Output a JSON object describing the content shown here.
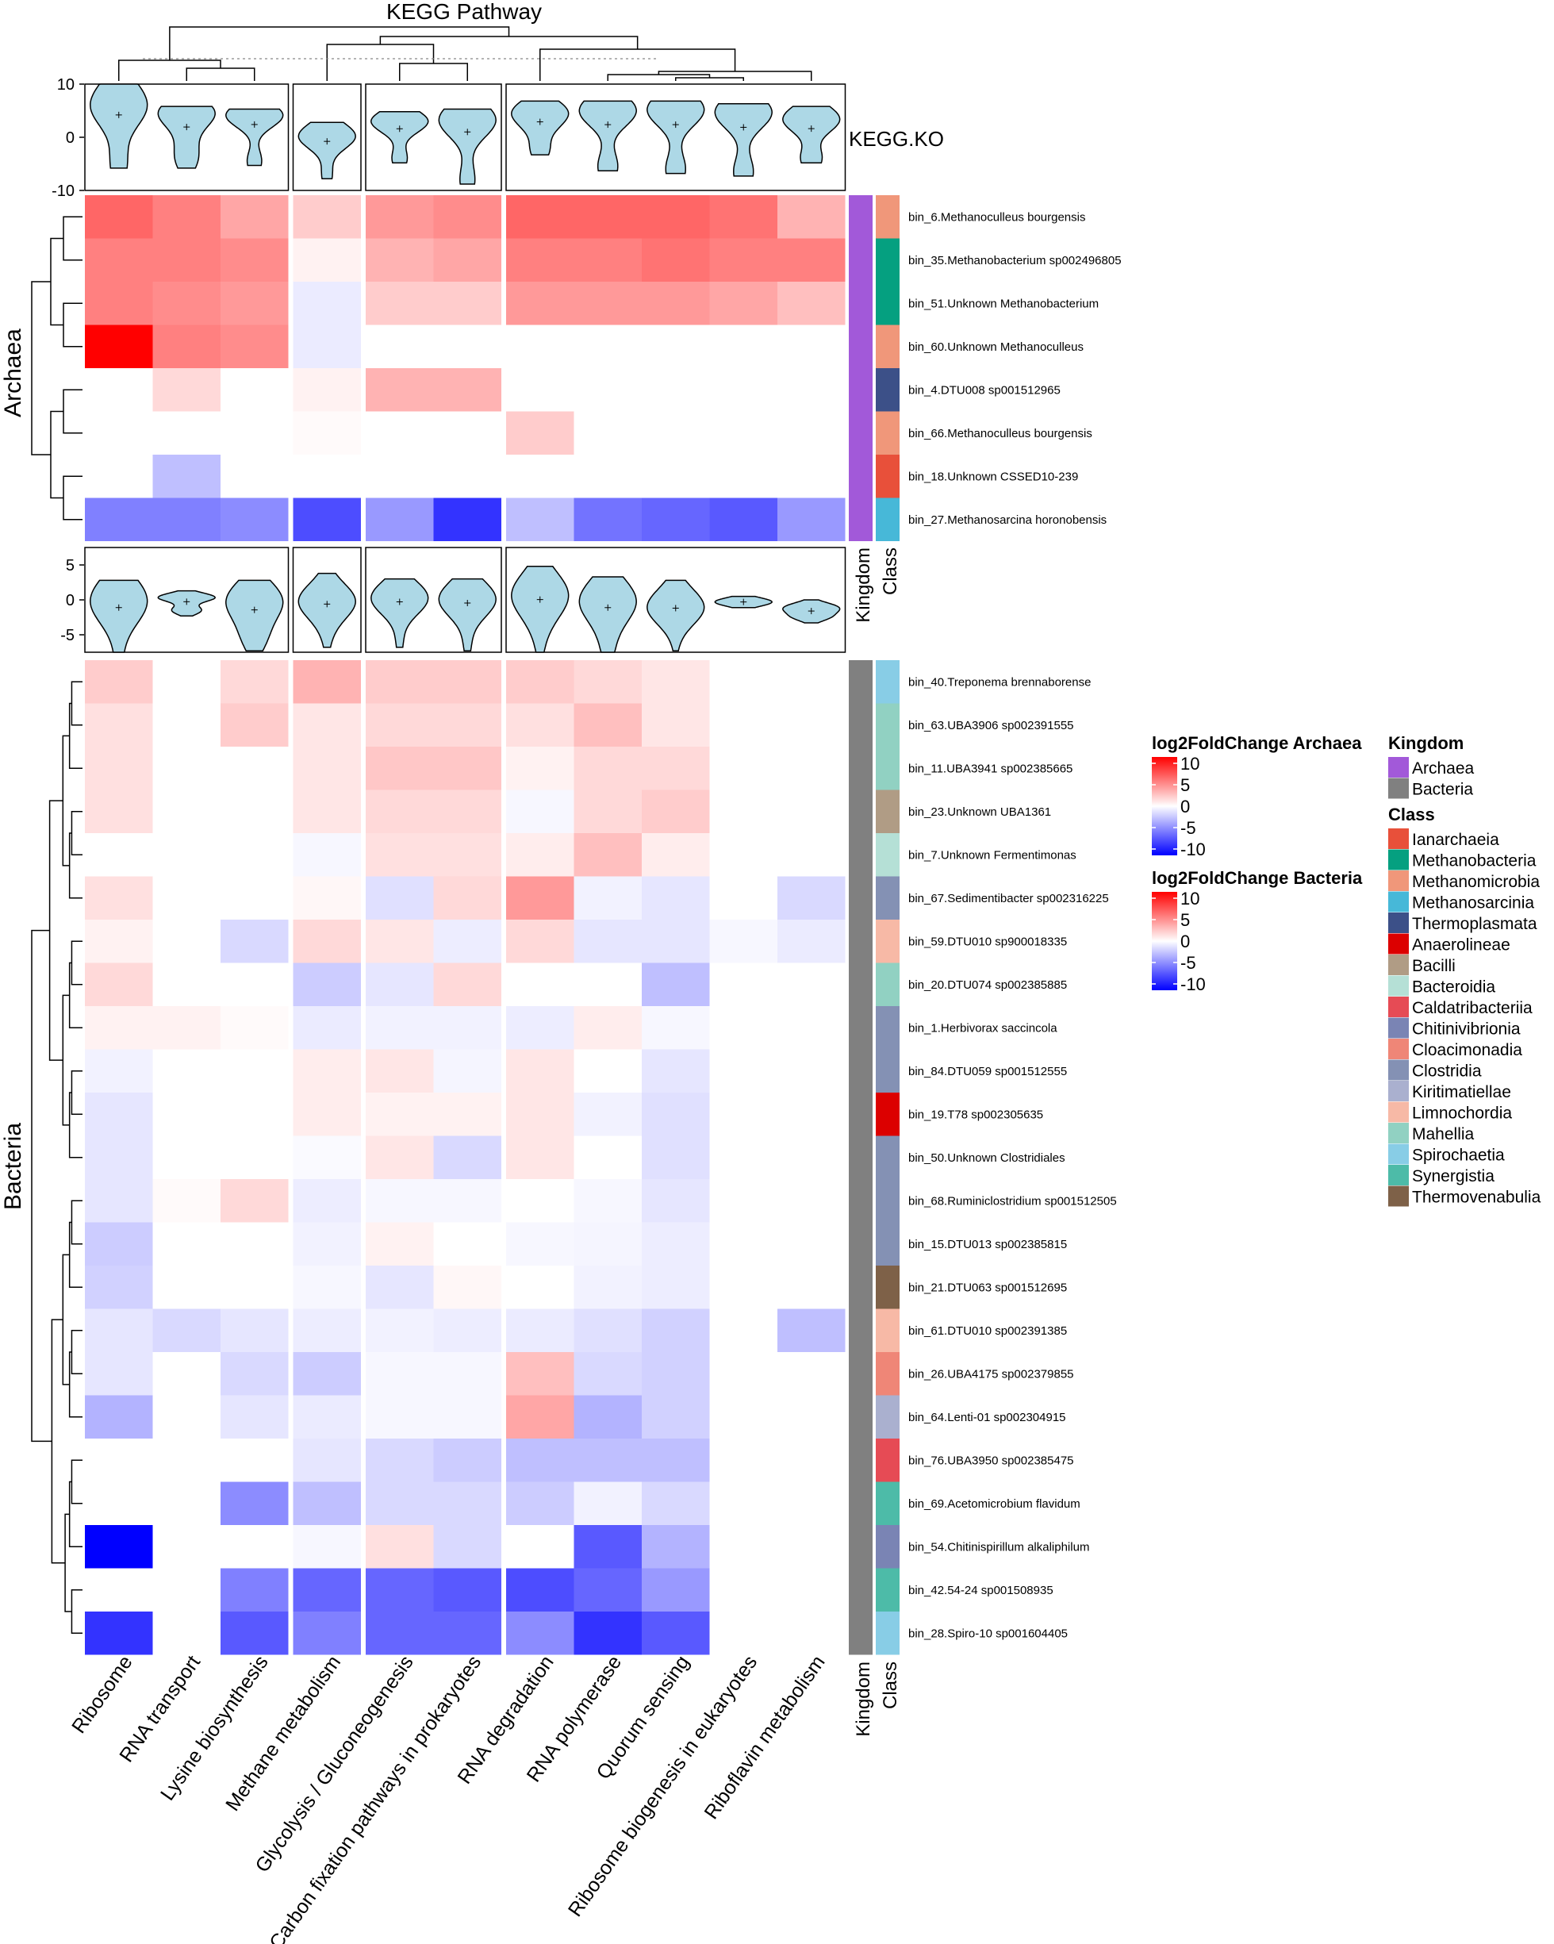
{
  "chart_data": {
    "type": "heatmap",
    "title": "KEGG Pathway",
    "violin_axis_label": "KEGG.KO",
    "row_group_titles": [
      "Archaea",
      "Bacteria"
    ],
    "annotation_labels": {
      "kingdom": "Kingdom",
      "class": "Class"
    },
    "violin_ticks": {
      "archaea": [
        "10",
        "0",
        "-10"
      ],
      "bacteria": [
        "5",
        "0",
        "-5"
      ]
    },
    "columns": [
      "Ribosome",
      "RNA transport",
      "Lysine biosynthesis",
      "Methane metabolism",
      "Glycolysis / Gluconeogenesis",
      "Carbon fixation pathways in prokaryotes",
      "RNA degradation",
      "RNA polymerase",
      "Quorum sensing",
      "Ribosome biogenesis in eukaryotes",
      "Riboflavin metabolism"
    ],
    "column_groups": [
      3,
      1,
      2,
      5
    ],
    "archaea": {
      "legend_title": "log2FoldChange Archaea",
      "rows": [
        {
          "name": "bin_6.Methanoculleus bourgensis",
          "kingdom": "Archaea",
          "class": "Methanomicrobia",
          "values": [
            6,
            5,
            3.5,
            2,
            4,
            4.5,
            6,
            6,
            6,
            5.5,
            3
          ]
        },
        {
          "name": "bin_35.Methanobacterium sp002496805",
          "kingdom": "Archaea",
          "class": "Methanobacteria",
          "values": [
            5,
            5,
            4.5,
            0.5,
            3,
            3.5,
            5,
            5,
            5.5,
            5,
            5
          ]
        },
        {
          "name": "bin_51.Unknown Methanobacterium",
          "kingdom": "Archaea",
          "class": "Methanobacteria",
          "values": [
            5,
            4.5,
            4,
            -0.8,
            2,
            2,
            4,
            4,
            4,
            3.5,
            2.5
          ]
        },
        {
          "name": "bin_60.Unknown Methanoculleus",
          "kingdom": "Archaea",
          "class": "Methanomicrobia",
          "values": [
            10,
            5,
            4.5,
            -0.8,
            0,
            0,
            0,
            0,
            0,
            0,
            0
          ]
        },
        {
          "name": "bin_4.DTU008 sp001512965",
          "kingdom": "Archaea",
          "class": "Thermoplasmata",
          "values": [
            0,
            1.5,
            0,
            0.5,
            3,
            3,
            0,
            0,
            0,
            0,
            0
          ]
        },
        {
          "name": "bin_66.Methanoculleus bourgensis",
          "kingdom": "Archaea",
          "class": "Methanomicrobia",
          "values": [
            0,
            0,
            0,
            0.2,
            0,
            0,
            2,
            0,
            0,
            0,
            0
          ]
        },
        {
          "name": "bin_18.Unknown CSSED10-239",
          "kingdom": "Archaea",
          "class": "Ianarchaeia",
          "values": [
            0,
            -2.5,
            0,
            0,
            0,
            0,
            0,
            0,
            0,
            0,
            0
          ]
        },
        {
          "name": "bin_27.Methanosarcina horonobensis",
          "kingdom": "Archaea",
          "class": "Methanosarcinia",
          "values": [
            -5,
            -5,
            -4.5,
            -7,
            -4,
            -8,
            -2.5,
            -5.5,
            -6,
            -6.5,
            -4
          ]
        }
      ]
    },
    "bacteria": {
      "legend_title": "log2FoldChange Bacteria",
      "rows": [
        {
          "name": "bin_40.Treponema brennaborense",
          "kingdom": "Bacteria",
          "class": "Spirochaetia",
          "values": [
            2,
            0,
            1.5,
            3,
            2,
            2,
            2,
            1.5,
            1,
            0,
            0
          ]
        },
        {
          "name": "bin_63.UBA3906 sp002391555",
          "kingdom": "Bacteria",
          "class": "Mahellia",
          "values": [
            1.2,
            0,
            2,
            1,
            1.5,
            1.5,
            1.2,
            2.5,
            1,
            0,
            0
          ]
        },
        {
          "name": "bin_11.UBA3941 sp002385665",
          "kingdom": "Bacteria",
          "class": "Mahellia",
          "values": [
            1.2,
            0,
            0,
            1,
            2.2,
            2.2,
            0.5,
            1.5,
            1.5,
            0,
            0
          ]
        },
        {
          "name": "bin_23.Unknown UBA1361",
          "kingdom": "Bacteria",
          "class": "Bacilli",
          "values": [
            1.2,
            0,
            0,
            1,
            1.5,
            1.5,
            -0.3,
            1.5,
            2,
            0,
            0
          ]
        },
        {
          "name": "bin_7.Unknown Fermentimonas",
          "kingdom": "Bacteria",
          "class": "Bacteroidia",
          "values": [
            0,
            0,
            0,
            -0.3,
            1.2,
            1.2,
            0.7,
            2.5,
            0.7,
            0,
            0
          ]
        },
        {
          "name": "bin_67.Sedimentibacter sp002316225",
          "kingdom": "Bacteria",
          "class": "Clostridia",
          "values": [
            1.2,
            0,
            0,
            0.3,
            -1.2,
            1.5,
            4,
            -0.5,
            -1,
            0,
            -1.5
          ]
        },
        {
          "name": "bin_59.DTU010 sp900018335",
          "kingdom": "Bacteria",
          "class": "Limnochordia",
          "values": [
            0.5,
            0,
            -1.5,
            1.5,
            1,
            -0.7,
            1.5,
            -1,
            -1,
            -0.3,
            -0.8
          ]
        },
        {
          "name": "bin_20.DTU074 sp002385885",
          "kingdom": "Bacteria",
          "class": "Mahellia",
          "values": [
            1.5,
            0,
            0,
            -2,
            -1,
            1.5,
            0,
            0,
            -2.5,
            0,
            0
          ]
        },
        {
          "name": "bin_1.Herbivorax saccincola",
          "kingdom": "Bacteria",
          "class": "Clostridia",
          "values": [
            0.5,
            0.5,
            0.2,
            -0.8,
            -0.5,
            -0.5,
            -0.7,
            0.7,
            -0.3,
            0,
            0
          ]
        },
        {
          "name": "bin_84.DTU059 sp001512555",
          "kingdom": "Bacteria",
          "class": "Clostridia",
          "values": [
            -0.5,
            0,
            0,
            0.7,
            1,
            -0.4,
            1,
            0,
            -1,
            0,
            0
          ]
        },
        {
          "name": "bin_19.T78 sp002305635",
          "kingdom": "Bacteria",
          "class": "Anaerolineae",
          "values": [
            -1,
            0,
            0,
            0.7,
            0.5,
            0.5,
            1,
            -0.5,
            -1.2,
            0,
            0
          ]
        },
        {
          "name": "bin_50.Unknown Clostridiales",
          "kingdom": "Bacteria",
          "class": "Clostridia",
          "values": [
            -1,
            0,
            0,
            -0.2,
            1,
            -1.5,
            1,
            0,
            -1.2,
            0,
            0
          ]
        },
        {
          "name": "bin_68.Ruminiclostridium sp001512505",
          "kingdom": "Bacteria",
          "class": "Clostridia",
          "values": [
            -1,
            0.2,
            1.5,
            -0.7,
            -0.3,
            -0.3,
            0,
            -0.3,
            -1,
            0,
            0
          ]
        },
        {
          "name": "bin_15.DTU013 sp002385815",
          "kingdom": "Bacteria",
          "class": "Clostridia",
          "values": [
            -2,
            0,
            0,
            -0.5,
            0.5,
            0,
            -0.3,
            -0.4,
            -0.7,
            0,
            0
          ]
        },
        {
          "name": "bin_21.DTU063 sp001512695",
          "kingdom": "Bacteria",
          "class": "Thermovenabulia",
          "values": [
            -1.8,
            0,
            0,
            -0.3,
            -1,
            0.3,
            0,
            -0.5,
            -0.7,
            0,
            0
          ]
        },
        {
          "name": "bin_61.DTU010 sp002391385",
          "kingdom": "Bacteria",
          "class": "Limnochordia",
          "values": [
            -1,
            -1.5,
            -1,
            -0.7,
            -0.5,
            -0.7,
            -0.8,
            -1.2,
            -1.8,
            0,
            -2.5
          ]
        },
        {
          "name": "bin_26.UBA4175 sp002379855",
          "kingdom": "Bacteria",
          "class": "Cloacimonadia",
          "values": [
            -1,
            0,
            -1.5,
            -2,
            -0.3,
            -0.3,
            2.5,
            -1.5,
            -1.8,
            0,
            0
          ]
        },
        {
          "name": "bin_64.Lenti-01 sp002304915",
          "kingdom": "Bacteria",
          "class": "Kiritimatiellae",
          "values": [
            -3,
            0,
            -1,
            -0.8,
            -0.3,
            -0.3,
            3.5,
            -3,
            -1.8,
            0,
            0
          ]
        },
        {
          "name": "bin_76.UBA3950 sp002385475",
          "kingdom": "Bacteria",
          "class": "Caldatribacteriia",
          "values": [
            0,
            0,
            0,
            -1,
            -1.5,
            -2,
            -2.5,
            -2.5,
            -2.5,
            0,
            0
          ]
        },
        {
          "name": "bin_69.Acetomicrobium flavidum",
          "kingdom": "Bacteria",
          "class": "Synergistia",
          "values": [
            0,
            0,
            -4.5,
            -2.5,
            -1.5,
            -1.5,
            -2,
            -0.5,
            -1.5,
            0,
            0
          ]
        },
        {
          "name": "bin_54.Chitinispirillum alkaliphilum",
          "kingdom": "Bacteria",
          "class": "Chitinivibrionia",
          "values": [
            -10,
            0,
            0,
            -0.3,
            1.2,
            -1.5,
            0,
            -6.5,
            -3,
            0,
            0
          ]
        },
        {
          "name": "bin_42.54-24 sp001508935",
          "kingdom": "Bacteria",
          "class": "Synergistia",
          "values": [
            0,
            0,
            -5,
            -6,
            -6,
            -6.5,
            -7,
            -6,
            -4,
            0,
            0
          ]
        },
        {
          "name": "bin_28.Spiro-10 sp001604405",
          "kingdom": "Bacteria",
          "class": "Spirochaetia",
          "values": [
            -8,
            0,
            -6.5,
            -5,
            -6,
            -6,
            -4.5,
            -8,
            -6.5,
            0,
            0
          ]
        }
      ]
    },
    "legend_ticks": [
      "10",
      "5",
      "0",
      "-5",
      "-10"
    ],
    "kingdom_legend": {
      "title": "Kingdom",
      "items": [
        {
          "label": "Archaea",
          "color": "#a259d9"
        },
        {
          "label": "Bacteria",
          "color": "#808080"
        }
      ]
    },
    "class_legend": {
      "title": "Class",
      "items": [
        {
          "label": "Ianarchaeia",
          "color": "#e8503a"
        },
        {
          "label": "Methanobacteria",
          "color": "#05a080"
        },
        {
          "label": "Methanomicrobia",
          "color": "#f0977a"
        },
        {
          "label": "Methanosarcinia",
          "color": "#47b8d8"
        },
        {
          "label": "Thermoplasmata",
          "color": "#3c5088"
        },
        {
          "label": "Anaerolineae",
          "color": "#dc0000"
        },
        {
          "label": "Bacilli",
          "color": "#b09c85"
        },
        {
          "label": "Bacteroidia",
          "color": "#b5e0d6"
        },
        {
          "label": "Caldatribacteriia",
          "color": "#e64b55"
        },
        {
          "label": "Chitinivibrionia",
          "color": "#7a84b4"
        },
        {
          "label": "Cloacimonadia",
          "color": "#ef8677"
        },
        {
          "label": "Clostridia",
          "color": "#8491b4"
        },
        {
          "label": "Kiritimatiellae",
          "color": "#aab0cf"
        },
        {
          "label": "Limnochordia",
          "color": "#f7b9a6"
        },
        {
          "label": "Mahellia",
          "color": "#91d1c2"
        },
        {
          "label": "Spirochaetia",
          "color": "#88cde6"
        },
        {
          "label": "Synergistia",
          "color": "#4dbba8"
        },
        {
          "label": "Thermovenabulia",
          "color": "#7e6148"
        }
      ]
    },
    "colors": {
      "high": "#ff0000",
      "mid": "#ffffff",
      "low": "#0000ff",
      "violin_fill": "#add8e6",
      "panel_border": "#000000"
    }
  }
}
